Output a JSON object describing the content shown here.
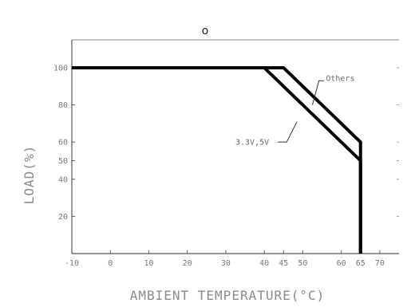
{
  "header": {
    "mark": "o"
  },
  "chart_data": {
    "type": "line",
    "title": "",
    "xlabel": "AMBIENT TEMPERATURE(°C)",
    "ylabel": "LOAD(%)",
    "xlim": [
      -10,
      75
    ],
    "ylim": [
      0,
      115
    ],
    "x_ticks": [
      -10,
      0,
      10,
      20,
      30,
      40,
      45,
      50,
      60,
      65,
      70
    ],
    "x_tick_labels": [
      "-10",
      "0",
      "10",
      "20",
      "30",
      "40",
      "45",
      "50",
      "60",
      "65",
      "70"
    ],
    "y_ticks": [
      20,
      40,
      50,
      60,
      80,
      100
    ],
    "y_tick_labels": [
      "20",
      "40",
      "50",
      "60",
      "80",
      "100"
    ],
    "grid": false,
    "series": [
      {
        "name": "3.3V,5V",
        "x": [
          -10,
          40,
          65,
          65
        ],
        "y": [
          100,
          100,
          50,
          0
        ]
      },
      {
        "name": "Others",
        "x": [
          -10,
          45,
          65,
          65
        ],
        "y": [
          100,
          100,
          60,
          0
        ]
      }
    ],
    "annotations": [
      {
        "text": "3.3V,5V"
      },
      {
        "text": "Others"
      }
    ]
  }
}
